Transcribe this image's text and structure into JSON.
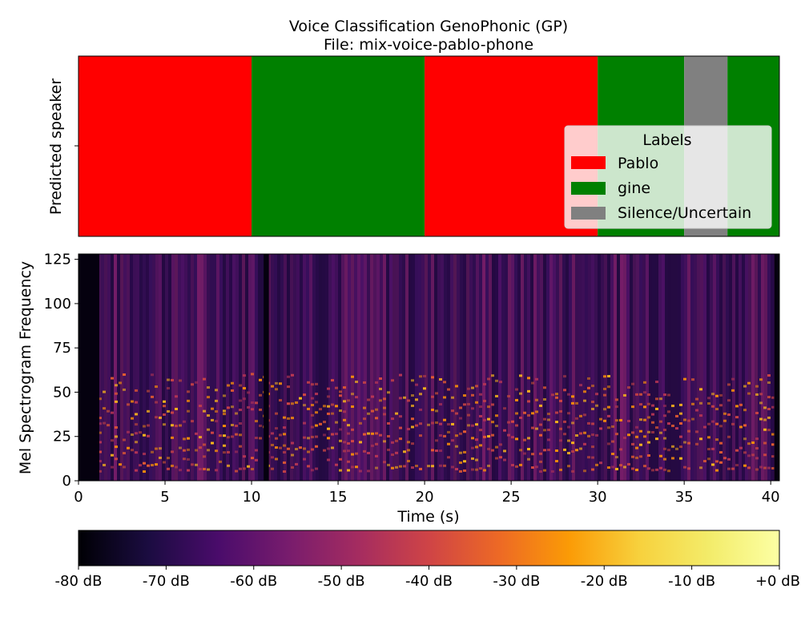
{
  "chart_data": [
    {
      "type": "timeline",
      "title_line1": "Voice Classification GenoPhonic (GP)",
      "title_line2": "File: mix-voice-pablo-phone",
      "ylabel": "Predicted speaker",
      "xlim": [
        0,
        40.5
      ],
      "segments": [
        {
          "label": "Pablo",
          "start": 0,
          "end": 10
        },
        {
          "label": "gine",
          "start": 10,
          "end": 20
        },
        {
          "label": "Pablo",
          "start": 20,
          "end": 30
        },
        {
          "label": "gine",
          "start": 30,
          "end": 35
        },
        {
          "label": "Silence/Uncertain",
          "start": 35,
          "end": 37.5
        },
        {
          "label": "gine",
          "start": 37.5,
          "end": 40.5
        }
      ],
      "legend": {
        "title": "Labels",
        "placement": "lower-right",
        "entries": [
          {
            "label": "Pablo",
            "color": "#ff0000"
          },
          {
            "label": "gine",
            "color": "#008000"
          },
          {
            "label": "Silence/Uncertain",
            "color": "#808080"
          }
        ]
      }
    },
    {
      "type": "heatmap",
      "xlabel": "Time (s)",
      "ylabel": "Mel Spectrogram Frequency",
      "xlim": [
        0,
        40.5
      ],
      "ylim": [
        0,
        128
      ],
      "xticks": [
        0,
        5,
        10,
        15,
        20,
        25,
        30,
        35,
        40
      ],
      "yticks": [
        0,
        25,
        50,
        75,
        100,
        125
      ],
      "colormap": "inferno",
      "silent_ranges": [
        [
          0,
          1.2
        ],
        [
          10.7,
          11
        ],
        [
          40.2,
          40.5
        ]
      ],
      "colorbar": {
        "range": [
          -80,
          0
        ],
        "tick_labels": [
          "-80 dB",
          "-70 dB",
          "-60 dB",
          "-50 dB",
          "-40 dB",
          "-30 dB",
          "-20 dB",
          "-10 dB",
          "+0 dB"
        ],
        "tick_values": [
          -80,
          -70,
          -60,
          -50,
          -40,
          -30,
          -20,
          -10,
          0
        ]
      }
    }
  ]
}
